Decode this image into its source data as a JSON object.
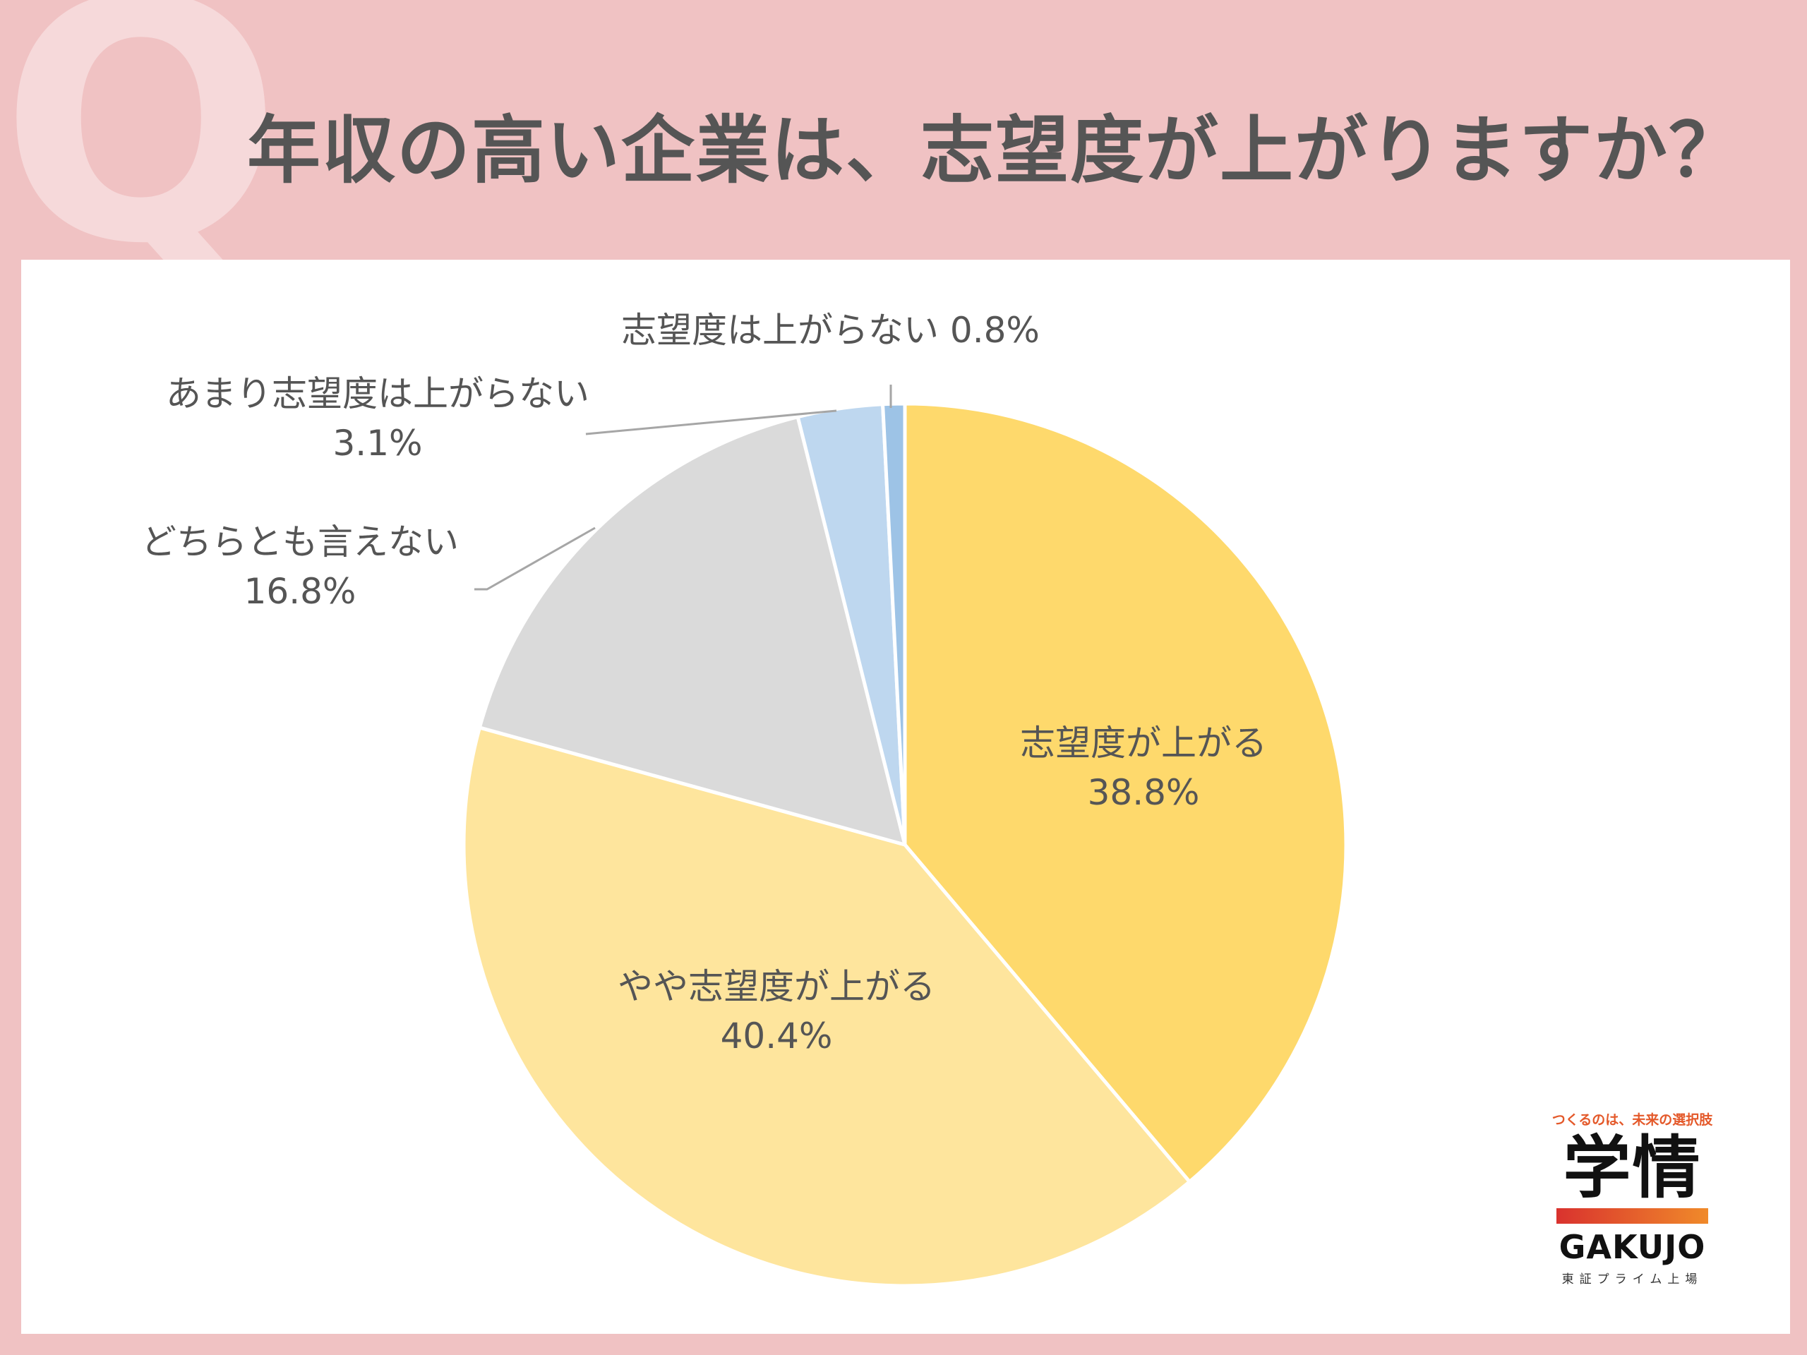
{
  "header": {
    "q_mark": "Q",
    "title": "年収の高い企業は、志望度が上がりますか？"
  },
  "chart_data": {
    "type": "pie",
    "start_angle_deg": 0,
    "direction": "clockwise",
    "slices": [
      {
        "label": "志望度が上がる",
        "value": 38.8,
        "value_text": "38.8%",
        "color": "#fed96c"
      },
      {
        "label": "やや志望度が上がる",
        "value": 40.4,
        "value_text": "40.4%",
        "color": "#fee59d"
      },
      {
        "label": "どちらとも言えない",
        "value": 16.8,
        "value_text": "16.8%",
        "color": "#dadada"
      },
      {
        "label": "あまり志望度は上がらない",
        "value": 3.1,
        "value_text": "3.1%",
        "color": "#bed7ef"
      },
      {
        "label": "志望度は上がらない",
        "value": 0.8,
        "value_text": "0.8%",
        "color": "#9dc3e6"
      }
    ]
  },
  "logo": {
    "tagline": "つくるのは、未来の選択肢",
    "kanji": "学情",
    "name": "GAKUJO",
    "sub": "東証プライム上場",
    "accent_color": "#e4592a"
  }
}
